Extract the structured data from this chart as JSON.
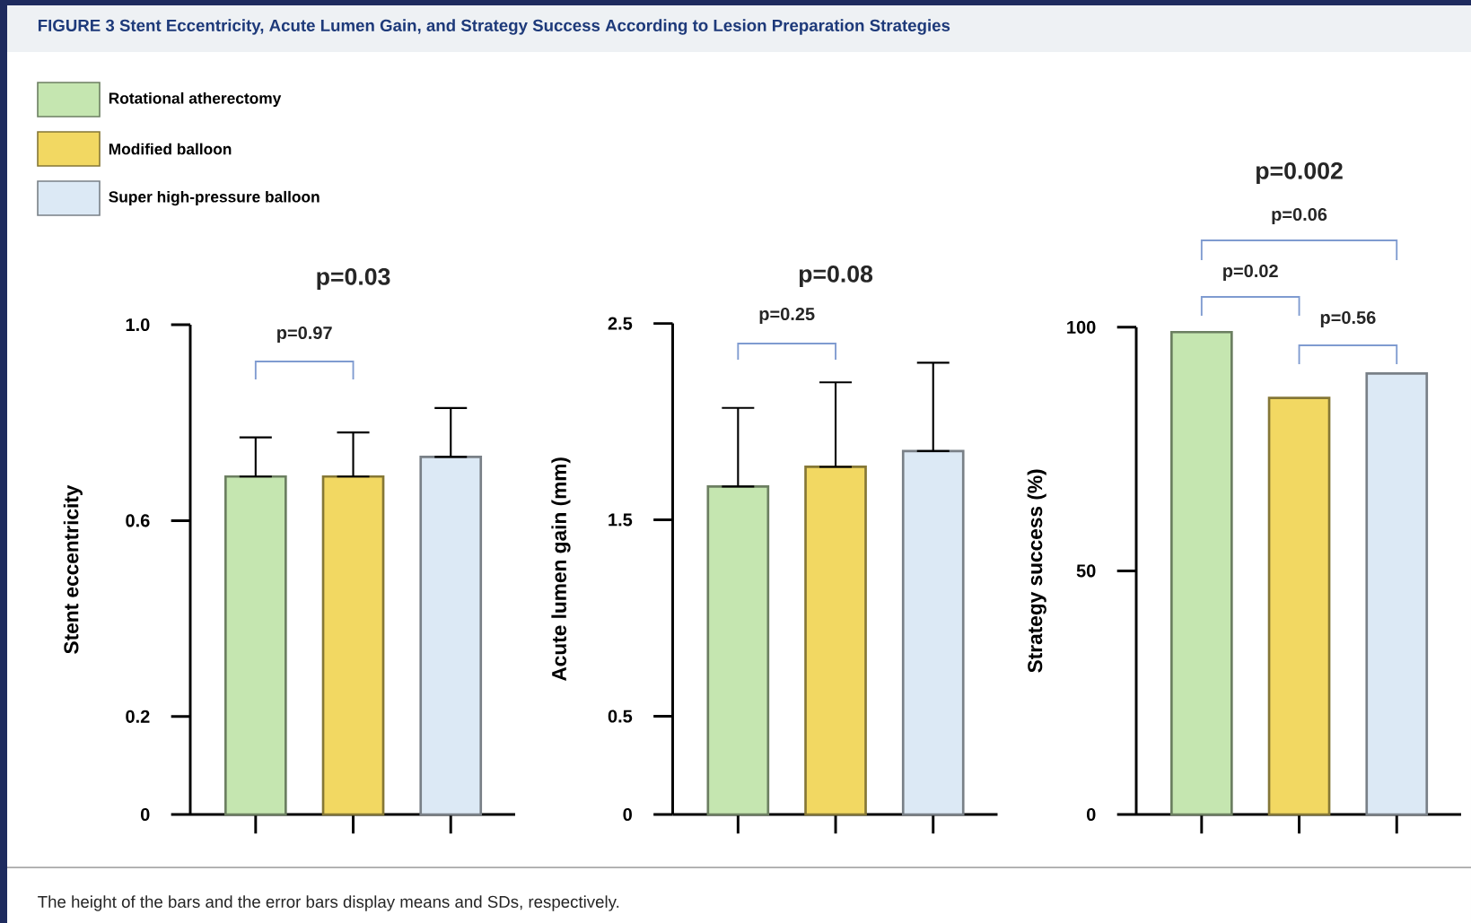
{
  "chart_data": [
    {
      "type": "bar",
      "title": "FIGURE 3 Stent Eccentricity, Acute Lumen Gain, and Strategy Success According to Lesion Preparation Strategies",
      "ylabel": "Stent eccentricity",
      "categories": [
        null,
        null,
        null
      ],
      "tick_labels": "y",
      "legend": "top left",
      "series": [
        {
          "name": "Rotational atherectomy",
          "color": "#c5e6b0",
          "values": [
            0.69,
            null,
            null
          ],
          "errors": [
            [
              0.69,
              0.77
            ],
            null,
            null
          ]
        },
        {
          "name": "Modified balloon",
          "color": "#f2d862",
          "values": [
            null,
            0.69,
            null
          ],
          "errors": [
            null,
            [
              0.69,
              0.78
            ],
            null
          ]
        },
        {
          "name": "Super high-pressure balloon",
          "color": "#dce9f5",
          "values": [
            null,
            null,
            0.73
          ],
          "errors": [
            null,
            null,
            [
              0.73,
              0.83
            ]
          ]
        }
      ],
      "ylim": [
        0,
        1.0
      ],
      "yticks": [
        0,
        0.2,
        0.6,
        {
          "value": 1.0,
          "label": "1.0"
        }
      ],
      "annotations": [
        "p=0.03",
        "p=0.97"
      ]
    },
    {
      "type": "bar",
      "ylabel": "Acute lumen gain (mm)",
      "categories": [
        null,
        null,
        null
      ],
      "tick_labels": "y",
      "series": [
        {
          "color": "#c5e6b0",
          "values": [
            1.67,
            null,
            null
          ],
          "errors": [
            [
              1.67,
              2.07
            ],
            null,
            null
          ]
        },
        {
          "color": "#f2d862",
          "values": [
            null,
            1.77,
            null
          ],
          "errors": [
            null,
            [
              1.77,
              2.2
            ],
            null
          ]
        },
        {
          "color": "#dce9f5",
          "values": [
            null,
            null,
            1.85
          ],
          "errors": [
            null,
            null,
            [
              1.85,
              2.3
            ]
          ]
        }
      ],
      "ylim": [
        0,
        2.5
      ],
      "yticks": [
        0,
        0.5,
        1.5,
        2.5
      ],
      "annotations": [
        "p=0.08",
        "p=0.25"
      ]
    },
    {
      "type": "bar",
      "ylabel": "Strategy success (%)",
      "categories": [
        null,
        null,
        null
      ],
      "tick_labels": "y",
      "series": [
        {
          "color": "#c5e6b0",
          "values": [
            99,
            null,
            null
          ]
        },
        {
          "color": "#f2d862",
          "values": [
            null,
            85.5,
            null
          ]
        },
        {
          "color": "#dce9f5",
          "values": [
            null,
            null,
            90.5
          ]
        }
      ],
      "ylim": [
        0,
        100
      ],
      "yticks": [
        0,
        50,
        100
      ],
      "annotations": [
        "p=0.002",
        "p=0.06",
        "p=0.02",
        "p=0.56"
      ]
    },
    {
      "type": "other",
      "annotations": [
        "The height of the bars and the error bars display means and SDs, respectively."
      ]
    }
  ]
}
